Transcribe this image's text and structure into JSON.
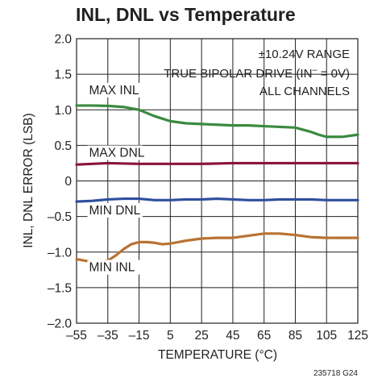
{
  "chart_data": {
    "type": "line",
    "title": "INL, DNL vs Temperature",
    "xlabel": "TEMPERATURE (°C)",
    "ylabel": "INL, DNL ERROR (LSB)",
    "xlim": [
      -55,
      125
    ],
    "ylim": [
      -2.0,
      2.0
    ],
    "x_ticks": [
      -55,
      -35,
      -15,
      5,
      25,
      45,
      65,
      85,
      105,
      125
    ],
    "x_tick_labels": [
      "–55",
      "–35",
      "–15",
      "5",
      "25",
      "45",
      "65",
      "85",
      "105",
      "125"
    ],
    "y_ticks": [
      2.0,
      1.5,
      1.0,
      0.5,
      0,
      -0.5,
      -1.0,
      -1.5,
      -2.0
    ],
    "y_tick_labels": [
      "2.0",
      "1.5",
      "1.0",
      "0.5",
      "0",
      "–0.5",
      "–1.0",
      "–1.5",
      "–2.0"
    ],
    "grid": true,
    "annotations": [
      "±10.24V RANGE",
      "TRUE BIPOLAR DRIVE (IN",
      "–",
      " = 0V)",
      "ALL CHANNELS"
    ],
    "figure_id": "235718 G24",
    "series": [
      {
        "name": "MAX INL",
        "color": "#3a8a3f",
        "x": [
          -55,
          -45,
          -35,
          -25,
          -15,
          -5,
          5,
          15,
          25,
          35,
          45,
          55,
          65,
          75,
          85,
          95,
          100,
          105,
          110,
          115,
          125
        ],
        "y": [
          1.06,
          1.06,
          1.055,
          1.04,
          1.0,
          0.91,
          0.84,
          0.81,
          0.8,
          0.79,
          0.78,
          0.78,
          0.77,
          0.76,
          0.75,
          0.69,
          0.65,
          0.62,
          0.62,
          0.62,
          0.65
        ]
      },
      {
        "name": "MAX DNL",
        "color": "#8a1538",
        "x": [
          -55,
          -35,
          -15,
          5,
          25,
          45,
          65,
          85,
          105,
          125
        ],
        "y": [
          0.23,
          0.25,
          0.24,
          0.24,
          0.24,
          0.25,
          0.25,
          0.25,
          0.25,
          0.25
        ]
      },
      {
        "name": "MIN DNL",
        "color": "#2f4f9e",
        "x": [
          -55,
          -45,
          -35,
          -25,
          -15,
          -5,
          5,
          15,
          25,
          35,
          45,
          55,
          65,
          75,
          85,
          95,
          105,
          115,
          125
        ],
        "y": [
          -0.29,
          -0.28,
          -0.26,
          -0.25,
          -0.25,
          -0.27,
          -0.27,
          -0.26,
          -0.26,
          -0.25,
          -0.26,
          -0.27,
          -0.27,
          -0.26,
          -0.26,
          -0.26,
          -0.27,
          -0.27,
          -0.27
        ]
      },
      {
        "name": "MIN INL",
        "color": "#b87332",
        "x": [
          -55,
          -50,
          -45,
          -40,
          -35,
          -30,
          -25,
          -20,
          -15,
          -10,
          -5,
          0,
          5,
          10,
          15,
          25,
          35,
          45,
          55,
          65,
          75,
          85,
          95,
          105,
          115,
          125
        ],
        "y": [
          -1.1,
          -1.12,
          -1.135,
          -1.14,
          -1.12,
          -1.05,
          -0.96,
          -0.89,
          -0.86,
          -0.86,
          -0.87,
          -0.89,
          -0.88,
          -0.86,
          -0.84,
          -0.81,
          -0.8,
          -0.8,
          -0.77,
          -0.74,
          -0.74,
          -0.76,
          -0.79,
          -0.8,
          -0.8,
          -0.8
        ]
      }
    ]
  }
}
